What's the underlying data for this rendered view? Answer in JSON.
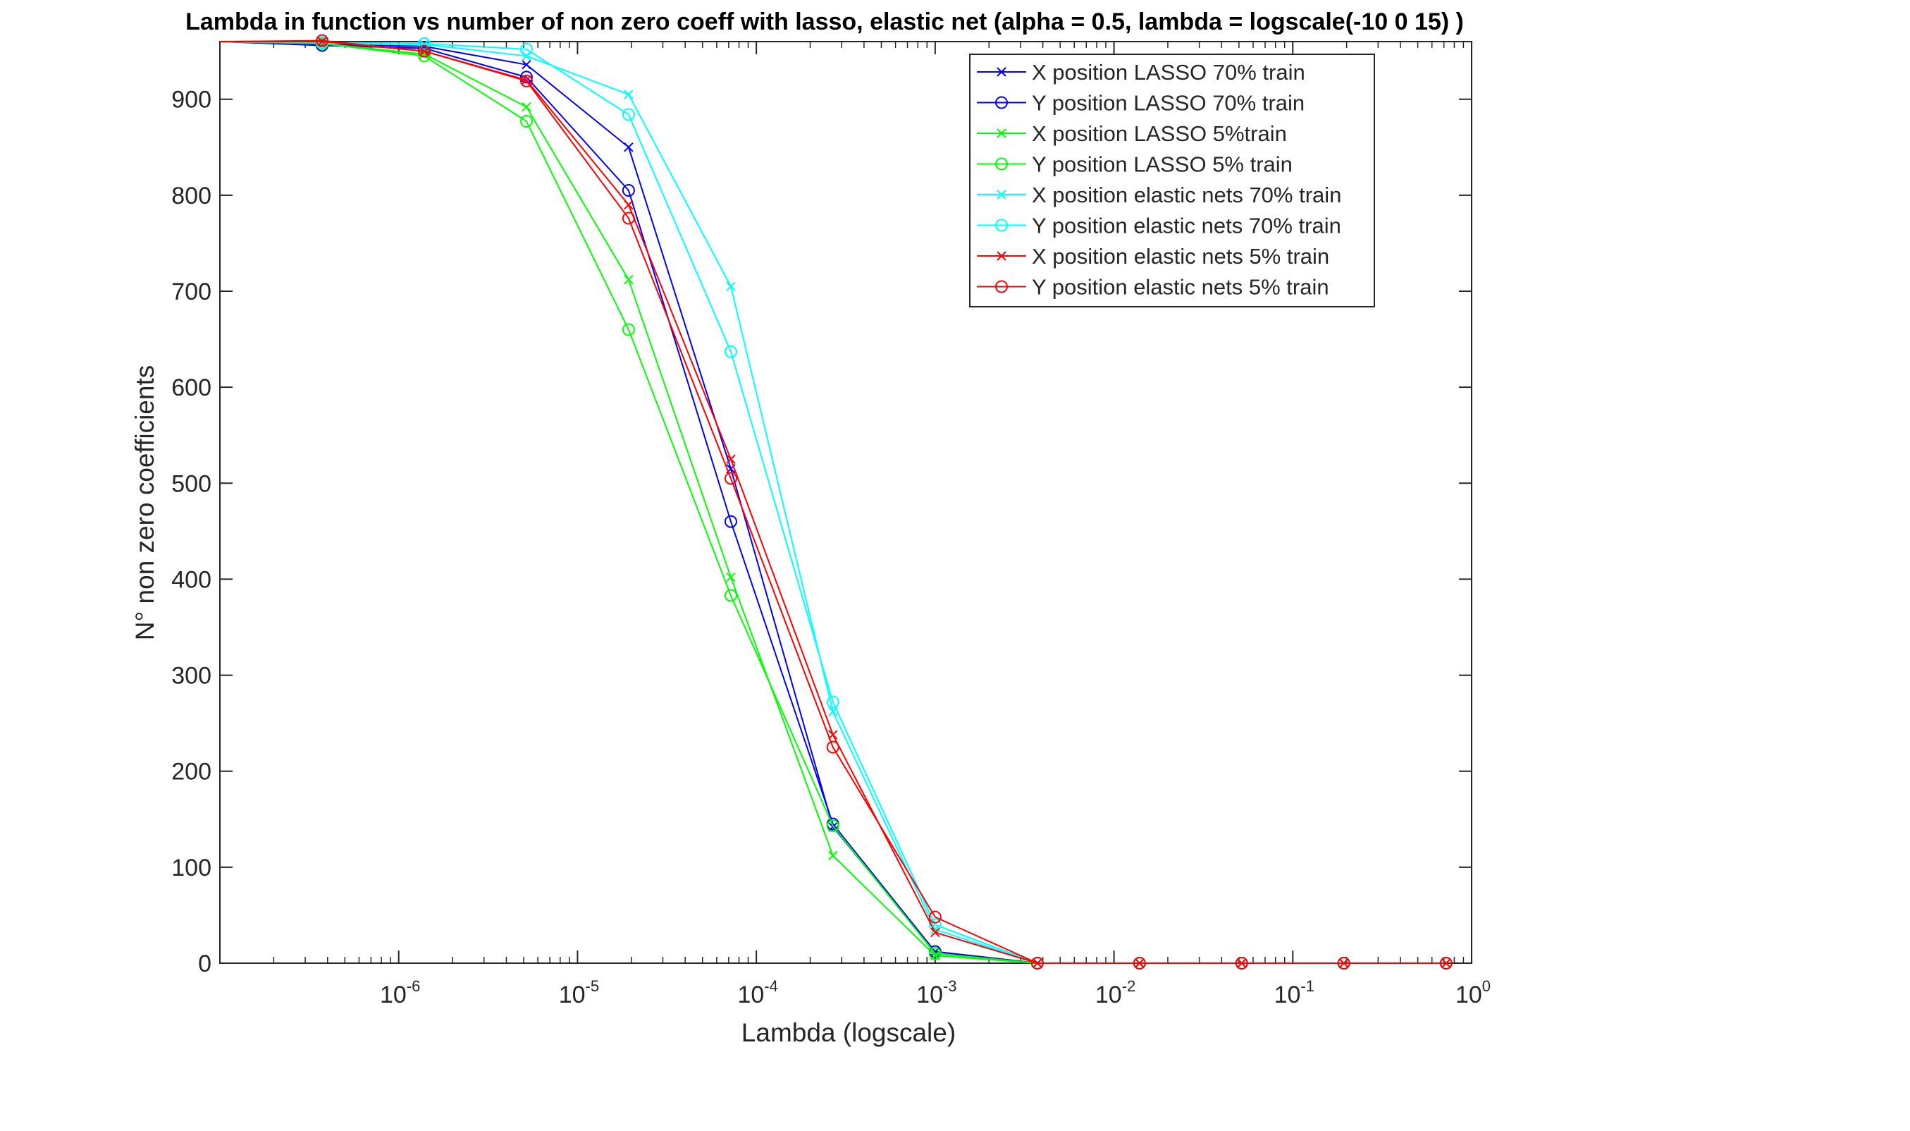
{
  "chart_data": {
    "type": "line",
    "title": "Lambda in function vs number of non zero coeff with lasso, elastic net (alpha = 0.5, lambda = logscale(-10 0 15) )",
    "xlabel": "Lambda (logscale)",
    "ylabel": "N° non zero coefficients",
    "xscale": "log",
    "xlim": [
      1e-07,
      1
    ],
    "ylim": [
      0,
      960
    ],
    "x_tick_labels": [
      {
        "base": "10",
        "exp": "-6"
      },
      {
        "base": "10",
        "exp": "-5"
      },
      {
        "base": "10",
        "exp": "-4"
      },
      {
        "base": "10",
        "exp": "-3"
      },
      {
        "base": "10",
        "exp": "-2"
      },
      {
        "base": "10",
        "exp": "-1"
      },
      {
        "base": "10",
        "exp": "0"
      }
    ],
    "y_ticks": [
      0,
      100,
      200,
      300,
      400,
      500,
      600,
      700,
      800,
      900
    ],
    "grid": false,
    "legend_position": "top-right",
    "x": [
      1e-07,
      3.73e-07,
      1.39e-06,
      5.18e-06,
      1.93e-05,
      7.2e-05,
      0.000268,
      0.001,
      0.00373,
      0.0139,
      0.0518,
      0.193,
      0.72
    ],
    "series": [
      {
        "name": "X position LASSO 70% train",
        "color": "#0000ff",
        "marker": "x",
        "values": [
          960,
          957,
          955,
          936,
          850,
          515,
          142,
          12,
          0,
          0,
          0,
          0,
          0
        ]
      },
      {
        "name": "Y position LASSO 70% train",
        "color": "#0000ff",
        "marker": "o",
        "values": [
          960,
          956,
          953,
          923,
          805,
          460,
          145,
          12,
          0,
          0,
          0,
          0,
          0
        ]
      },
      {
        "name": "X position LASSO 5%train",
        "color": "#00ff00",
        "marker": "x",
        "values": [
          960,
          958,
          947,
          892,
          712,
          402,
          112,
          8,
          0,
          0,
          0,
          0,
          0
        ]
      },
      {
        "name": "Y position LASSO 5% train",
        "color": "#00ff00",
        "marker": "o",
        "values": [
          960,
          958,
          945,
          877,
          660,
          383,
          143,
          10,
          0,
          0,
          0,
          0,
          0
        ]
      },
      {
        "name": "X position elastic nets 70% train",
        "color": "#00ffff",
        "marker": "x",
        "values": [
          960,
          959,
          957,
          945,
          905,
          705,
          262,
          35,
          0,
          0,
          0,
          0,
          0
        ]
      },
      {
        "name": "Y position elastic nets 70% train",
        "color": "#00ffff",
        "marker": "o",
        "values": [
          960,
          959,
          958,
          952,
          884,
          637,
          272,
          40,
          0,
          0,
          0,
          0,
          0
        ]
      },
      {
        "name": "X position elastic nets 5% train",
        "color": "#ff0000",
        "marker": "x",
        "values": [
          960,
          960,
          950,
          920,
          790,
          525,
          238,
          32,
          0,
          0,
          0,
          0,
          0
        ]
      },
      {
        "name": "Y position elastic nets 5% train",
        "color": "#ff0000",
        "marker": "o",
        "values": [
          960,
          961,
          950,
          919,
          776,
          505,
          225,
          48,
          0,
          0,
          0,
          0,
          0
        ]
      }
    ]
  }
}
